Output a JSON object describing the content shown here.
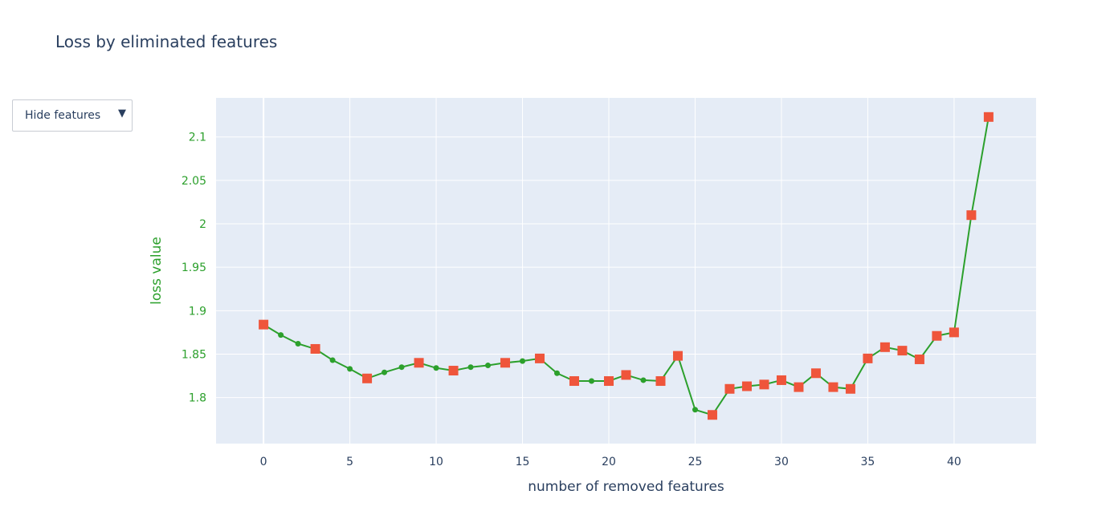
{
  "chart_data": {
    "type": "line",
    "title": "Loss by eliminated features",
    "xlabel": "number of removed features",
    "ylabel": "loss value",
    "xlim": [
      -2.75,
      44.75
    ],
    "ylim": [
      1.747,
      2.145
    ],
    "xticks": [
      0,
      5,
      10,
      15,
      20,
      25,
      30,
      35,
      40
    ],
    "yticks": [
      1.8,
      1.85,
      1.9,
      1.95,
      2,
      2.05,
      2.1
    ],
    "ytick_labels": [
      "1.8",
      "1.85",
      "1.9",
      "1.95",
      "2",
      "2.05",
      "2.1"
    ],
    "grid": true,
    "series": [
      {
        "x": [
          0,
          1,
          2,
          3,
          4,
          5,
          6,
          7,
          8,
          9,
          10,
          11,
          12,
          13,
          14,
          15,
          16,
          17,
          18,
          19,
          20,
          21,
          22,
          23,
          24,
          25,
          26,
          27,
          28,
          29,
          30,
          31,
          32,
          33,
          34,
          35,
          36,
          37,
          38,
          39,
          40,
          41,
          42
        ],
        "values": [
          1.884,
          1.872,
          1.862,
          1.856,
          1.843,
          1.833,
          1.822,
          1.829,
          1.835,
          1.84,
          1.834,
          1.831,
          1.835,
          1.837,
          1.84,
          1.842,
          1.845,
          1.828,
          1.819,
          1.819,
          1.819,
          1.826,
          1.82,
          1.819,
          1.848,
          1.786,
          1.78,
          1.81,
          1.813,
          1.815,
          1.82,
          1.812,
          1.828,
          1.812,
          1.81,
          1.845,
          1.858,
          1.854,
          1.844,
          1.871,
          1.875,
          2.01,
          2.123
        ],
        "square_marker_x": [
          0,
          3,
          6,
          9,
          11,
          14,
          16,
          18,
          20,
          21,
          23,
          24,
          26,
          27,
          28,
          29,
          30,
          31,
          32,
          33,
          34,
          35,
          36,
          37,
          38,
          39,
          40,
          41,
          42
        ]
      }
    ],
    "colors": {
      "line": "#2ca02c",
      "square": "#ef553b",
      "plot_bg": "#e5ecf6",
      "grid": "#ffffff",
      "text": "#2a3f5f"
    }
  },
  "menu": {
    "label": "Hide features",
    "arrow": "▼"
  }
}
